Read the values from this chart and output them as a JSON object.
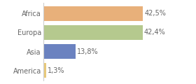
{
  "categories": [
    "America",
    "Asia",
    "Europa",
    "Africa"
  ],
  "values": [
    1.3,
    13.8,
    42.4,
    42.5
  ],
  "labels": [
    "1,3%",
    "13,8%",
    "42,4%",
    "42,5%"
  ],
  "bar_colors": [
    "#e8c97a",
    "#6b82c0",
    "#b5c98e",
    "#e8b07a"
  ],
  "background_color": "#ffffff",
  "xlim": [
    0,
    55
  ],
  "label_fontsize": 7,
  "tick_fontsize": 7,
  "bar_height": 0.78
}
